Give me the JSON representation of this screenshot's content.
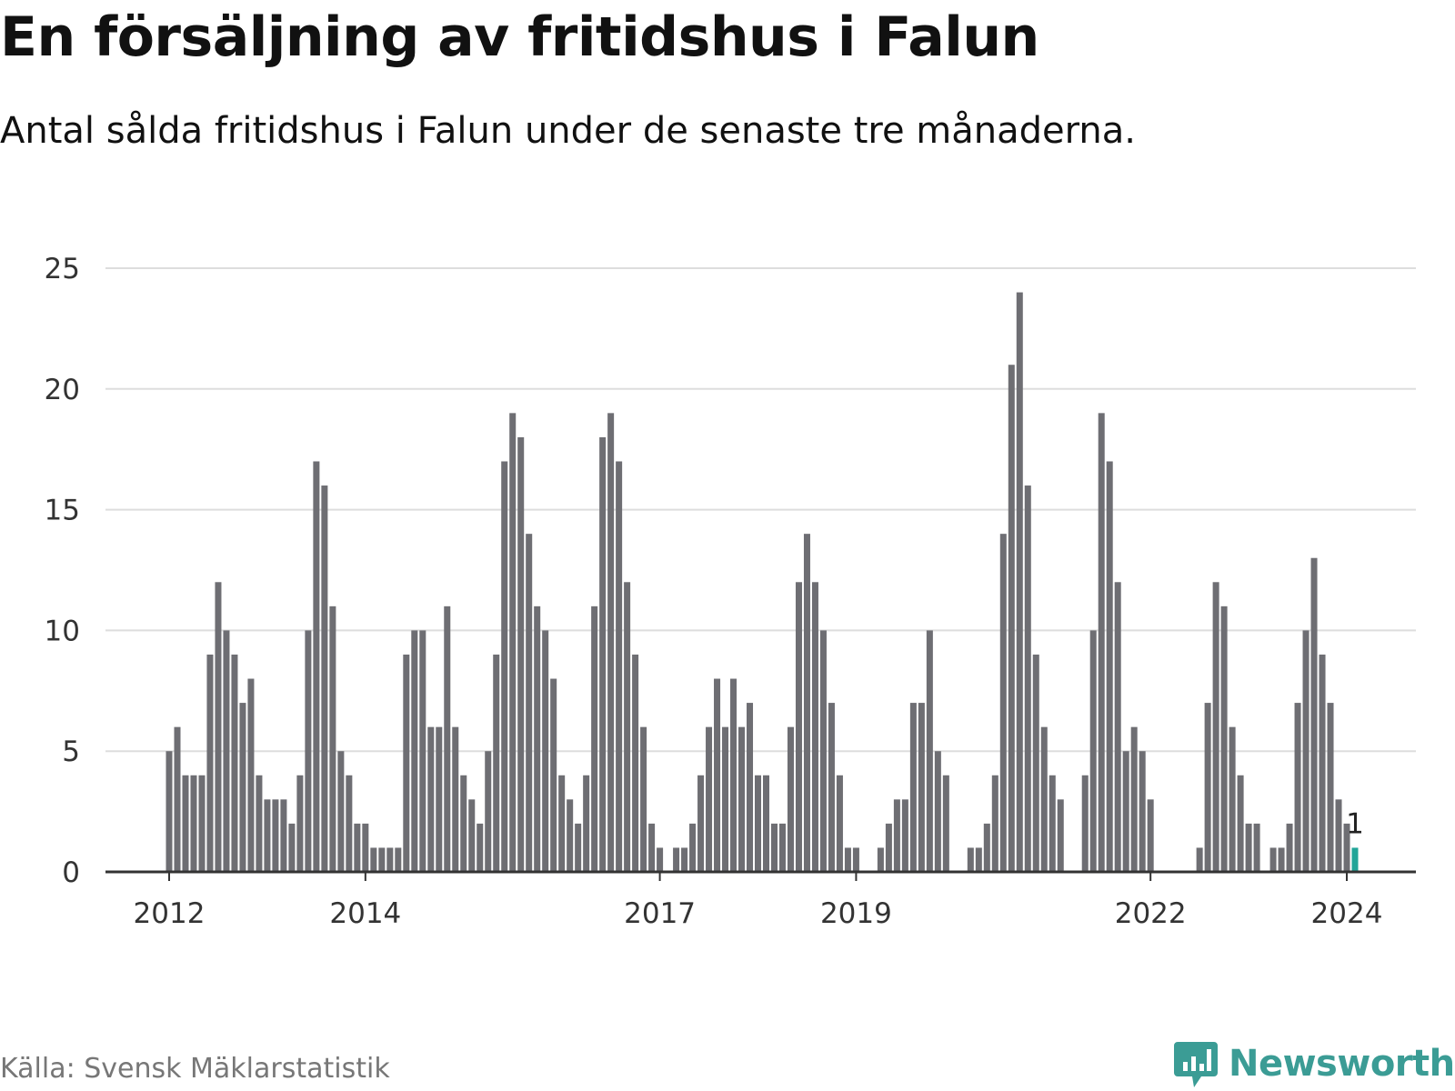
{
  "header": {
    "title": "En försäljning av fritidshus i Falun",
    "subtitle": "Antal sålda fritidshus i Falun under de senaste tre månaderna."
  },
  "footer": {
    "source": "Källa: Svensk Mäklarstatistik",
    "brand": "Newsworthy"
  },
  "colors": {
    "bar": "#6e6e73",
    "highlight": "#21a598",
    "grid": "#dddddd",
    "axis": "#333333",
    "brand": "#3b9c95"
  },
  "icons": {
    "brand_logo": "bar-chart-speech-bubble-icon"
  },
  "chart_data": {
    "type": "bar",
    "title": "En försäljning av fritidshus i Falun",
    "subtitle": "Antal sålda fritidshus i Falun under de senaste tre månaderna.",
    "xlabel": "",
    "ylabel": "",
    "ylim": [
      0,
      25
    ],
    "yticks": [
      0,
      5,
      10,
      15,
      20,
      25
    ],
    "grid": true,
    "legend": "none",
    "x_start": "2012-01",
    "x_end": "2024-01",
    "xticks": [
      {
        "date": "2012-01",
        "label": "2012"
      },
      {
        "date": "2014-01",
        "label": "2014"
      },
      {
        "date": "2017-01",
        "label": "2017"
      },
      {
        "date": "2019-01",
        "label": "2019"
      },
      {
        "date": "2022-01",
        "label": "2022"
      },
      {
        "date": "2024-01",
        "label": "2024"
      }
    ],
    "values": [
      5,
      6,
      4,
      4,
      4,
      9,
      12,
      10,
      9,
      7,
      8,
      4,
      3,
      3,
      3,
      2,
      4,
      10,
      17,
      16,
      11,
      5,
      4,
      2,
      2,
      1,
      1,
      1,
      1,
      9,
      10,
      10,
      6,
      6,
      11,
      6,
      4,
      3,
      2,
      5,
      9,
      17,
      19,
      18,
      14,
      11,
      10,
      8,
      4,
      3,
      2,
      4,
      11,
      18,
      19,
      17,
      12,
      9,
      6,
      2,
      1,
      0,
      1,
      1,
      2,
      4,
      6,
      8,
      6,
      8,
      6,
      7,
      4,
      4,
      2,
      2,
      6,
      12,
      14,
      12,
      10,
      7,
      4,
      1,
      1,
      0,
      0,
      1,
      2,
      3,
      3,
      7,
      7,
      10,
      5,
      4,
      0,
      0,
      1,
      1,
      2,
      4,
      14,
      21,
      24,
      16,
      9,
      6,
      4,
      3,
      0,
      0,
      4,
      10,
      19,
      17,
      12,
      5,
      6,
      5,
      3,
      0,
      0,
      0,
      0,
      0,
      1,
      7,
      12,
      11,
      6,
      4,
      2,
      2,
      0,
      1,
      1,
      2,
      7,
      10,
      13,
      9,
      7,
      3,
      2,
      1
    ],
    "highlight_index": 145,
    "annotations": [
      {
        "index": 145,
        "label": "1"
      }
    ]
  }
}
